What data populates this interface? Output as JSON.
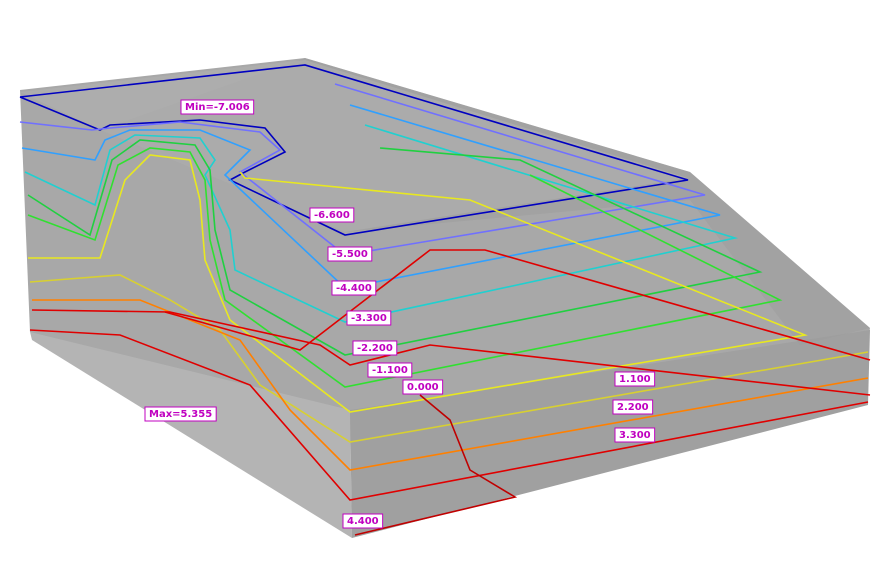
{
  "labels": [
    "Min=-7.006",
    "-6.600",
    "-5.500",
    "-4.400",
    "-3.300",
    "-2.200",
    "-1.100",
    "0.000",
    "1.100",
    "2.200",
    "3.300",
    "4.400",
    "Max=5.355"
  ]
}
